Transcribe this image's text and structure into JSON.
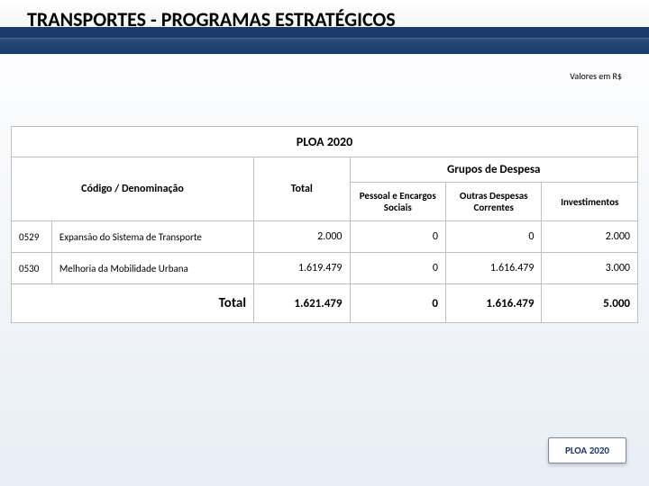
{
  "title": "TRANSPORTES - PROGRAMAS ESTRATÉGICOS",
  "valores_label": "Valores em R$",
  "table": {
    "ploa_header": "PLOA 2020",
    "codigo_denom_header": "Código / Denominação",
    "total_header": "Total",
    "grupos_header": "Grupos de Despesa",
    "sub_headers": {
      "pessoal": "Pessoal e Encargos Sociais",
      "outras": "Outras Despesas Correntes",
      "invest": "Investimentos"
    },
    "rows": [
      {
        "codigo": "0529",
        "denom": "Expansão do Sistema de Transporte",
        "total": "2.000",
        "pessoal": "0",
        "outras": "0",
        "invest": "2.000"
      },
      {
        "codigo": "0530",
        "denom": "Melhoria da Mobilidade Urbana",
        "total": "1.619.479",
        "pessoal": "0",
        "outras": "1.616.479",
        "invest": "3.000"
      }
    ],
    "total_row": {
      "label": "Total",
      "total": "1.621.479",
      "pessoal": "0",
      "outras": "1.616.479",
      "invest": "5.000"
    }
  },
  "footer_badge": "PLOA 2020",
  "colors": {
    "header_blue": "#1a3a6e",
    "border_gray": "#bfbfbf",
    "bg_gradient_end": "#e8eef5"
  }
}
